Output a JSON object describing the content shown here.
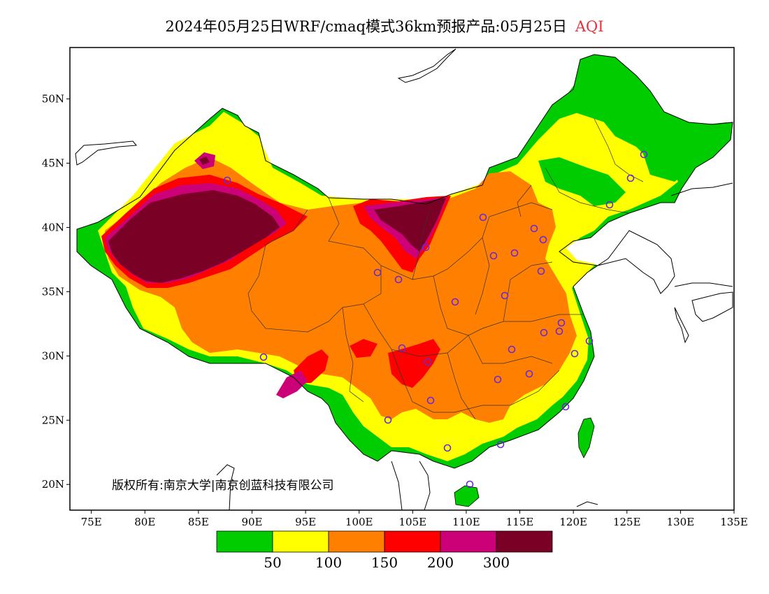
{
  "header": {
    "title": "2024年05月25日WRF/cmaq模式36km预报产品:05月25日",
    "variable": "AQI"
  },
  "map": {
    "lon_range": [
      73,
      135
    ],
    "lat_range": [
      18,
      54
    ],
    "x_ticks": [
      "75E",
      "80E",
      "85E",
      "90E",
      "95E",
      "100E",
      "105E",
      "110E",
      "115E",
      "120E",
      "125E",
      "130E",
      "135E"
    ],
    "y_ticks": [
      "20N",
      "25N",
      "30N",
      "35N",
      "40N",
      "45N",
      "50N"
    ]
  },
  "legend": {
    "colors": [
      "#00cc00",
      "#ffff00",
      "#ff7f00",
      "#ff0000",
      "#cc0077",
      "#7a0025"
    ],
    "labels": [
      "50",
      "100",
      "150",
      "200",
      "300"
    ]
  },
  "copyright": "版权所有:南京大学|南京创蓝科技有限公司"
}
